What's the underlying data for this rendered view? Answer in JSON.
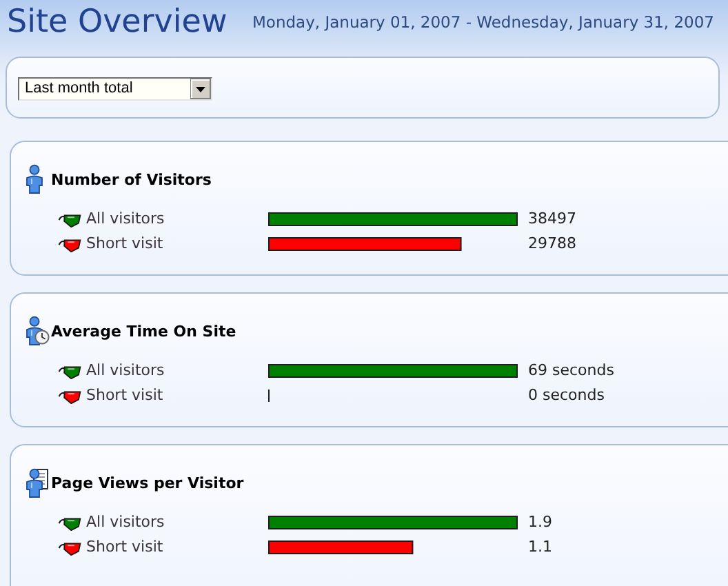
{
  "chart_data": [
    {
      "type": "other",
      "title": "Site Overview",
      "subtitle": "Monday, January 01, 2007 - Wednesday, January 31, 2007",
      "annotations": [
        "Last month total"
      ]
    },
    {
      "type": "bar",
      "orientation": "horizontal",
      "title": "Number of Visitors",
      "categories": [
        "All visitors",
        "Short visit"
      ],
      "values": [
        38497,
        29788
      ],
      "colors": [
        "#008000",
        "#ff0000"
      ],
      "data_labels": true,
      "tick_labels": "y"
    },
    {
      "type": "bar",
      "orientation": "horizontal",
      "title": "Average Time On Site",
      "categories": [
        "All visitors",
        "Short visit"
      ],
      "values": [
        69,
        0
      ],
      "colors": [
        "#008000",
        "#ff0000"
      ],
      "value_labels": [
        "69 seconds",
        "0 seconds"
      ],
      "tick_labels": "y"
    },
    {
      "type": "bar",
      "orientation": "horizontal",
      "title": "Page Views per Visitor",
      "categories": [
        "All visitors",
        "Short visit"
      ],
      "values": [
        1.9,
        1.1
      ],
      "colors": [
        "#008000",
        "#ff0000"
      ],
      "data_labels": true,
      "tick_labels": "y"
    }
  ]
}
